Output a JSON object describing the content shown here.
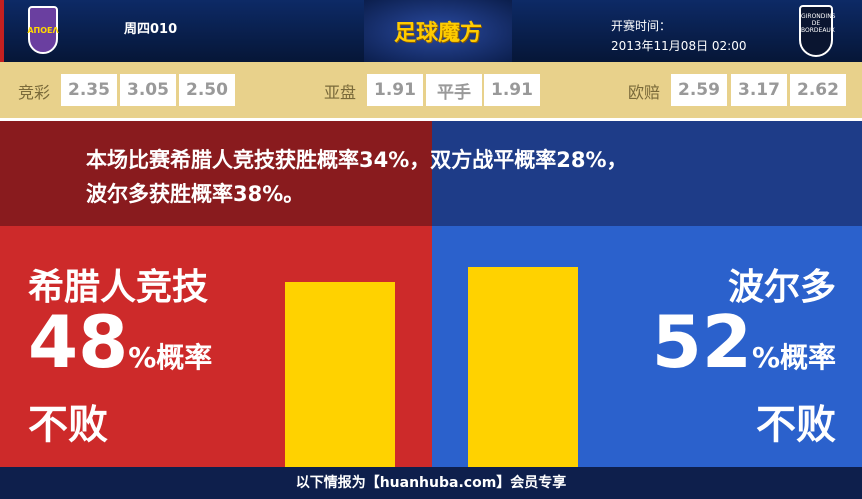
{
  "header": {
    "home_logo": "ΑΠΟΕΛ",
    "match_code": "周四010",
    "brand": "足球魔方",
    "kickoff_label": "开赛时间：",
    "kickoff_time": "2013年11月08日 02:00",
    "away_logo": "GIRONDINS DE BORDEAUX"
  },
  "odds": {
    "jingcai": {
      "label": "竞彩",
      "values": [
        "2.35",
        "3.05",
        "2.50"
      ]
    },
    "yapan": {
      "label": "亚盘",
      "values": [
        "1.91",
        "平手",
        "1.91"
      ]
    },
    "ouzhou": {
      "label": "欧赔",
      "values": [
        "2.59",
        "3.17",
        "2.62"
      ]
    }
  },
  "summary": {
    "line1": "本场比赛希腊人竞技获胜概率34%，双方战平概率28%，",
    "line2": "波尔多获胜概率38%。"
  },
  "home": {
    "name": "希腊人竞技",
    "percent": "48",
    "suffix": "%概率",
    "label": "不败",
    "value": 48
  },
  "away": {
    "name": "波尔多",
    "percent": "52",
    "suffix": "%概率",
    "label": "不败",
    "value": 52
  },
  "colors": {
    "home": "#cd2a2a",
    "away": "#2b61cc",
    "bar": "#ffd200"
  },
  "footer": "以下情报为【huanhuba.com】会员专享"
}
